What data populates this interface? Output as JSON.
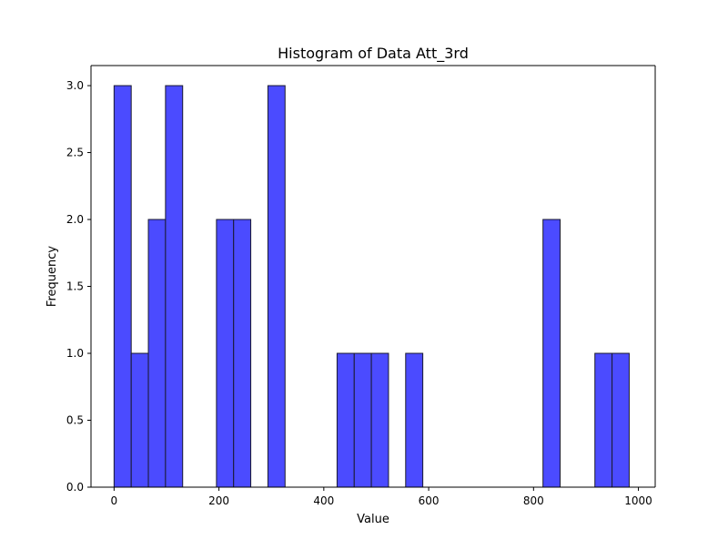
{
  "chart_data": {
    "type": "bar",
    "title": "Histogram of Data Att_3rd",
    "xlabel": "Value",
    "ylabel": "Frequency",
    "xlim": [
      -44,
      1032
    ],
    "ylim": [
      0,
      3.15
    ],
    "x_ticks": [
      0,
      200,
      400,
      600,
      800,
      1000
    ],
    "x_tick_labels": [
      "0",
      "200",
      "400",
      "600",
      "800",
      "1000"
    ],
    "y_ticks": [
      0,
      0.5,
      1.0,
      1.5,
      2.0,
      2.5,
      3.0
    ],
    "y_tick_labels": [
      "0.0",
      "0.5",
      "1.0",
      "1.5",
      "2.0",
      "2.5",
      "3.0"
    ],
    "bin_width": 32.7,
    "bins": [
      {
        "start": 0.0,
        "count": 3
      },
      {
        "start": 32.7,
        "count": 1
      },
      {
        "start": 65.4,
        "count": 2
      },
      {
        "start": 98.1,
        "count": 3
      },
      {
        "start": 195.3,
        "count": 2
      },
      {
        "start": 228.0,
        "count": 2
      },
      {
        "start": 293.4,
        "count": 3
      },
      {
        "start": 425.3,
        "count": 1
      },
      {
        "start": 458.0,
        "count": 1
      },
      {
        "start": 490.7,
        "count": 1
      },
      {
        "start": 556.1,
        "count": 1
      },
      {
        "start": 818.0,
        "count": 2
      },
      {
        "start": 917.0,
        "count": 1
      },
      {
        "start": 949.7,
        "count": 1
      }
    ],
    "bar_color": "#4b4bff",
    "edge_color": "#1a1a2e",
    "grid": false,
    "legend": "none"
  }
}
